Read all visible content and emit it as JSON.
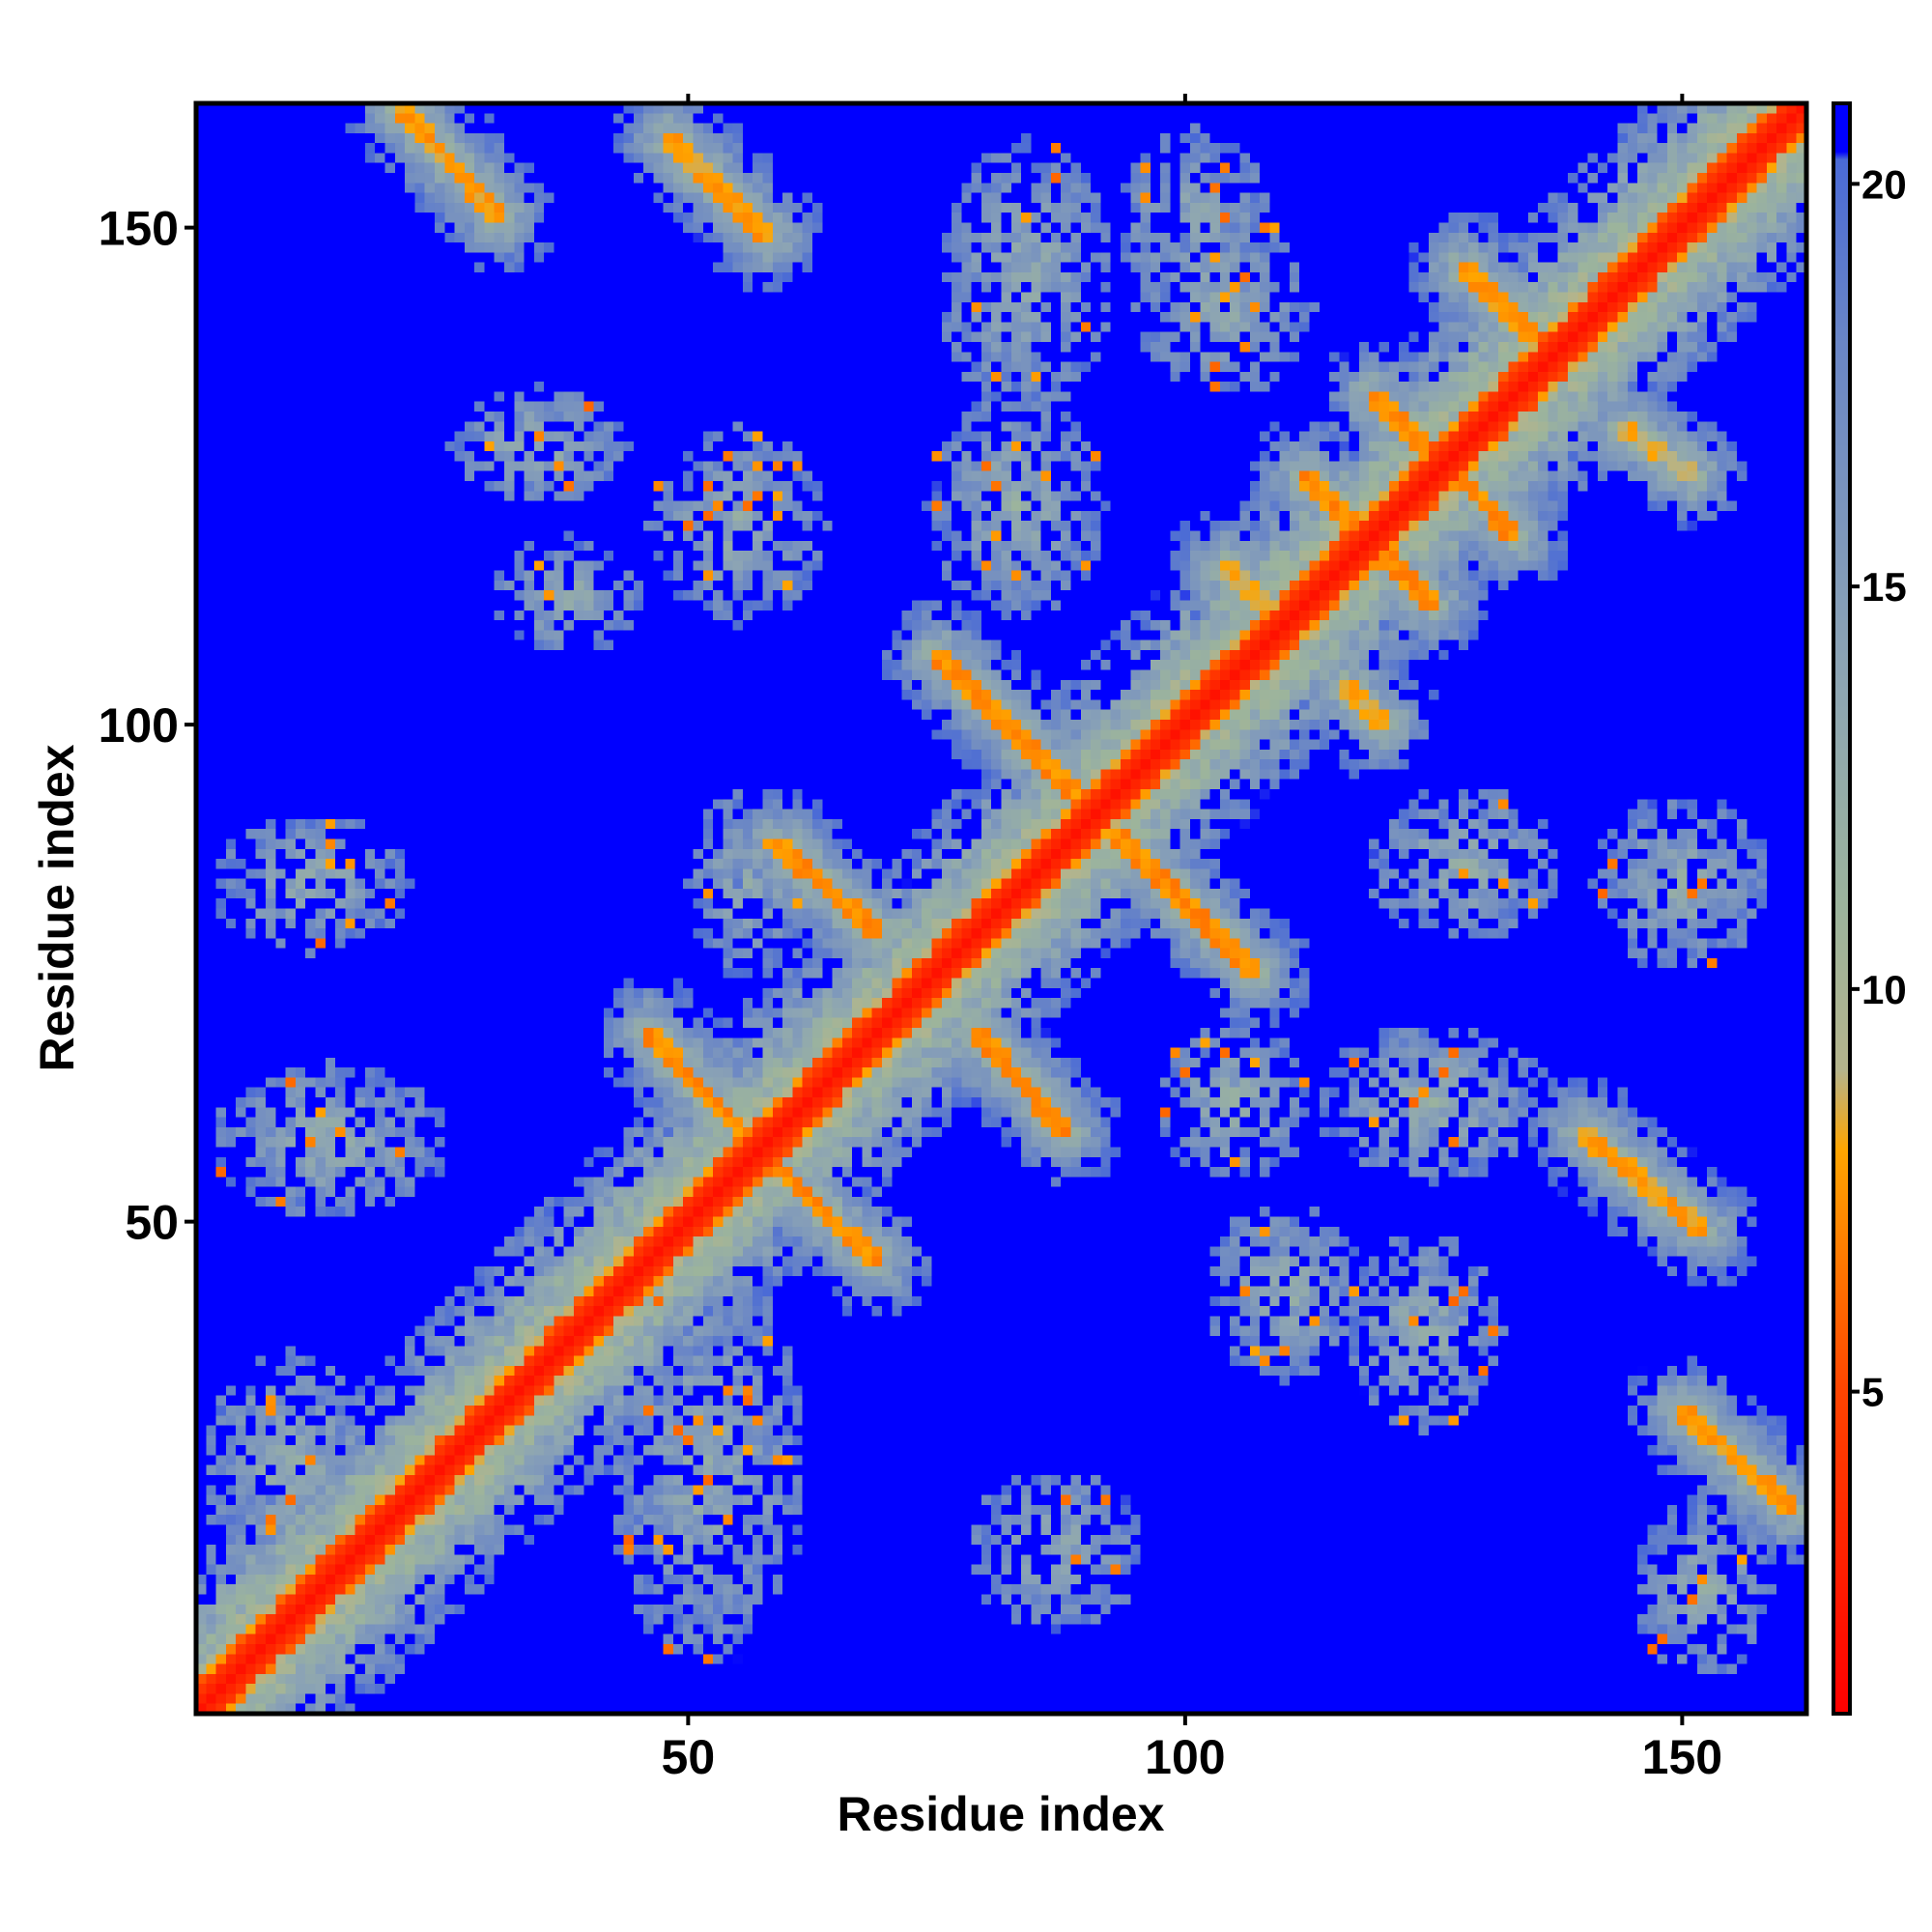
{
  "chart_data": {
    "type": "heatmap",
    "title": "",
    "xlabel": "Residue index",
    "ylabel": "Residue index",
    "n_residues": 162,
    "xlim": [
      1,
      162
    ],
    "ylim": [
      1,
      162
    ],
    "xticks": [
      50,
      100,
      150
    ],
    "yticks": [
      50,
      100,
      150
    ],
    "colorbar": {
      "ticks": [
        5,
        10,
        15,
        20
      ],
      "range": [
        1,
        21
      ],
      "stops": [
        {
          "value": 1,
          "color": "#ff0000"
        },
        {
          "value": 5,
          "color": "#ff4400"
        },
        {
          "value": 8,
          "color": "#ffa500"
        },
        {
          "value": 9,
          "color": "#b4b48c"
        },
        {
          "value": 11,
          "color": "#9cb49c"
        },
        {
          "value": 14,
          "color": "#8ca4b4"
        },
        {
          "value": 18,
          "color": "#6a86c6"
        },
        {
          "value": 20.3,
          "color": "#4a6ad6"
        },
        {
          "value": 20.4,
          "color": "#0000ff"
        },
        {
          "value": 21,
          "color": "#0000ff"
        }
      ]
    },
    "background_value": 21,
    "contact_bands": [
      {
        "kind": "diagonal",
        "x0": 1,
        "y0": 1,
        "x1": 162,
        "y1": 162,
        "core": 2.0
      },
      {
        "kind": "antiparallel",
        "x0": 56,
        "y0": 58,
        "x1": 69,
        "y1": 46,
        "core": 6.5
      },
      {
        "kind": "antiparallel",
        "x0": 46,
        "y0": 69,
        "x1": 58,
        "y1": 56,
        "core": 6.5
      },
      {
        "kind": "antiparallel",
        "x0": 59,
        "y0": 88,
        "x1": 69,
        "y1": 79,
        "core": 6.5
      },
      {
        "kind": "antiparallel",
        "x0": 79,
        "y0": 69,
        "x1": 88,
        "y1": 59,
        "core": 6.5
      },
      {
        "kind": "antiparallel",
        "x0": 75,
        "y0": 107,
        "x1": 89,
        "y1": 93,
        "core": 6.5
      },
      {
        "kind": "antiparallel",
        "x0": 93,
        "y0": 89,
        "x1": 107,
        "y1": 75,
        "core": 6.5
      },
      {
        "kind": "antiparallel",
        "x0": 112,
        "y0": 125,
        "x1": 125,
        "y1": 112,
        "core": 6.5
      },
      {
        "kind": "antiparallel",
        "x0": 119,
        "y0": 133,
        "x1": 128,
        "y1": 124,
        "core": 6.5
      },
      {
        "kind": "antiparallel",
        "x0": 125,
        "y0": 128,
        "x1": 133,
        "y1": 119,
        "core": 6.5
      },
      {
        "kind": "antiparallel",
        "x0": 128,
        "y0": 146,
        "x1": 135,
        "y1": 139,
        "core": 7.0
      },
      {
        "kind": "parallel",
        "x0": 21,
        "y0": 162,
        "x1": 31,
        "y1": 151,
        "core": 7.0
      },
      {
        "kind": "parallel",
        "x0": 48,
        "y0": 159,
        "x1": 58,
        "y1": 149,
        "core": 7.0
      },
      {
        "kind": "parallel",
        "x0": 140,
        "y0": 59,
        "x1": 152,
        "y1": 49,
        "core": 7.0
      },
      {
        "kind": "parallel",
        "x0": 150,
        "y0": 31,
        "x1": 161,
        "y1": 21,
        "core": 7.0
      },
      {
        "kind": "parallel",
        "x0": 144,
        "y0": 130,
        "x1": 151,
        "y1": 125,
        "core": 7.5
      },
      {
        "kind": "antiparallel",
        "x0": 104,
        "y0": 116,
        "x1": 108,
        "y1": 112,
        "core": 7.5
      },
      {
        "kind": "antiparallel",
        "x0": 116,
        "y0": 104,
        "x1": 120,
        "y1": 100,
        "core": 7.5
      }
    ],
    "contact_clusters": [
      {
        "cx": 35,
        "cy": 128,
        "rx": 9,
        "ry": 6
      },
      {
        "cx": 38,
        "cy": 113,
        "rx": 8,
        "ry": 6
      },
      {
        "cx": 12,
        "cy": 84,
        "rx": 10,
        "ry": 7
      },
      {
        "cx": 55,
        "cy": 120,
        "rx": 9,
        "ry": 10
      },
      {
        "cx": 83,
        "cy": 122,
        "rx": 9,
        "ry": 12
      },
      {
        "cx": 84,
        "cy": 145,
        "rx": 9,
        "ry": 14
      },
      {
        "cx": 101,
        "cy": 150,
        "rx": 8,
        "ry": 10
      },
      {
        "cx": 14,
        "cy": 58,
        "rx": 12,
        "ry": 8
      },
      {
        "cx": 10,
        "cy": 25,
        "rx": 9,
        "ry": 12
      },
      {
        "cx": 52,
        "cy": 25,
        "rx": 10,
        "ry": 20
      },
      {
        "cx": 87,
        "cy": 17,
        "rx": 9,
        "ry": 8
      },
      {
        "cx": 110,
        "cy": 43,
        "rx": 8,
        "ry": 9
      },
      {
        "cx": 124,
        "cy": 39,
        "rx": 8,
        "ry": 10
      },
      {
        "cx": 128,
        "cy": 86,
        "rx": 10,
        "ry": 8
      },
      {
        "cx": 150,
        "cy": 84,
        "rx": 9,
        "ry": 9
      },
      {
        "cx": 125,
        "cy": 62,
        "rx": 12,
        "ry": 8
      },
      {
        "cx": 152,
        "cy": 13,
        "rx": 7,
        "ry": 9
      },
      {
        "cx": 104,
        "cy": 142,
        "rx": 9,
        "ry": 9
      },
      {
        "cx": 56,
        "cy": 84,
        "rx": 6,
        "ry": 10
      },
      {
        "cx": 105,
        "cy": 62,
        "rx": 8,
        "ry": 8
      }
    ]
  }
}
